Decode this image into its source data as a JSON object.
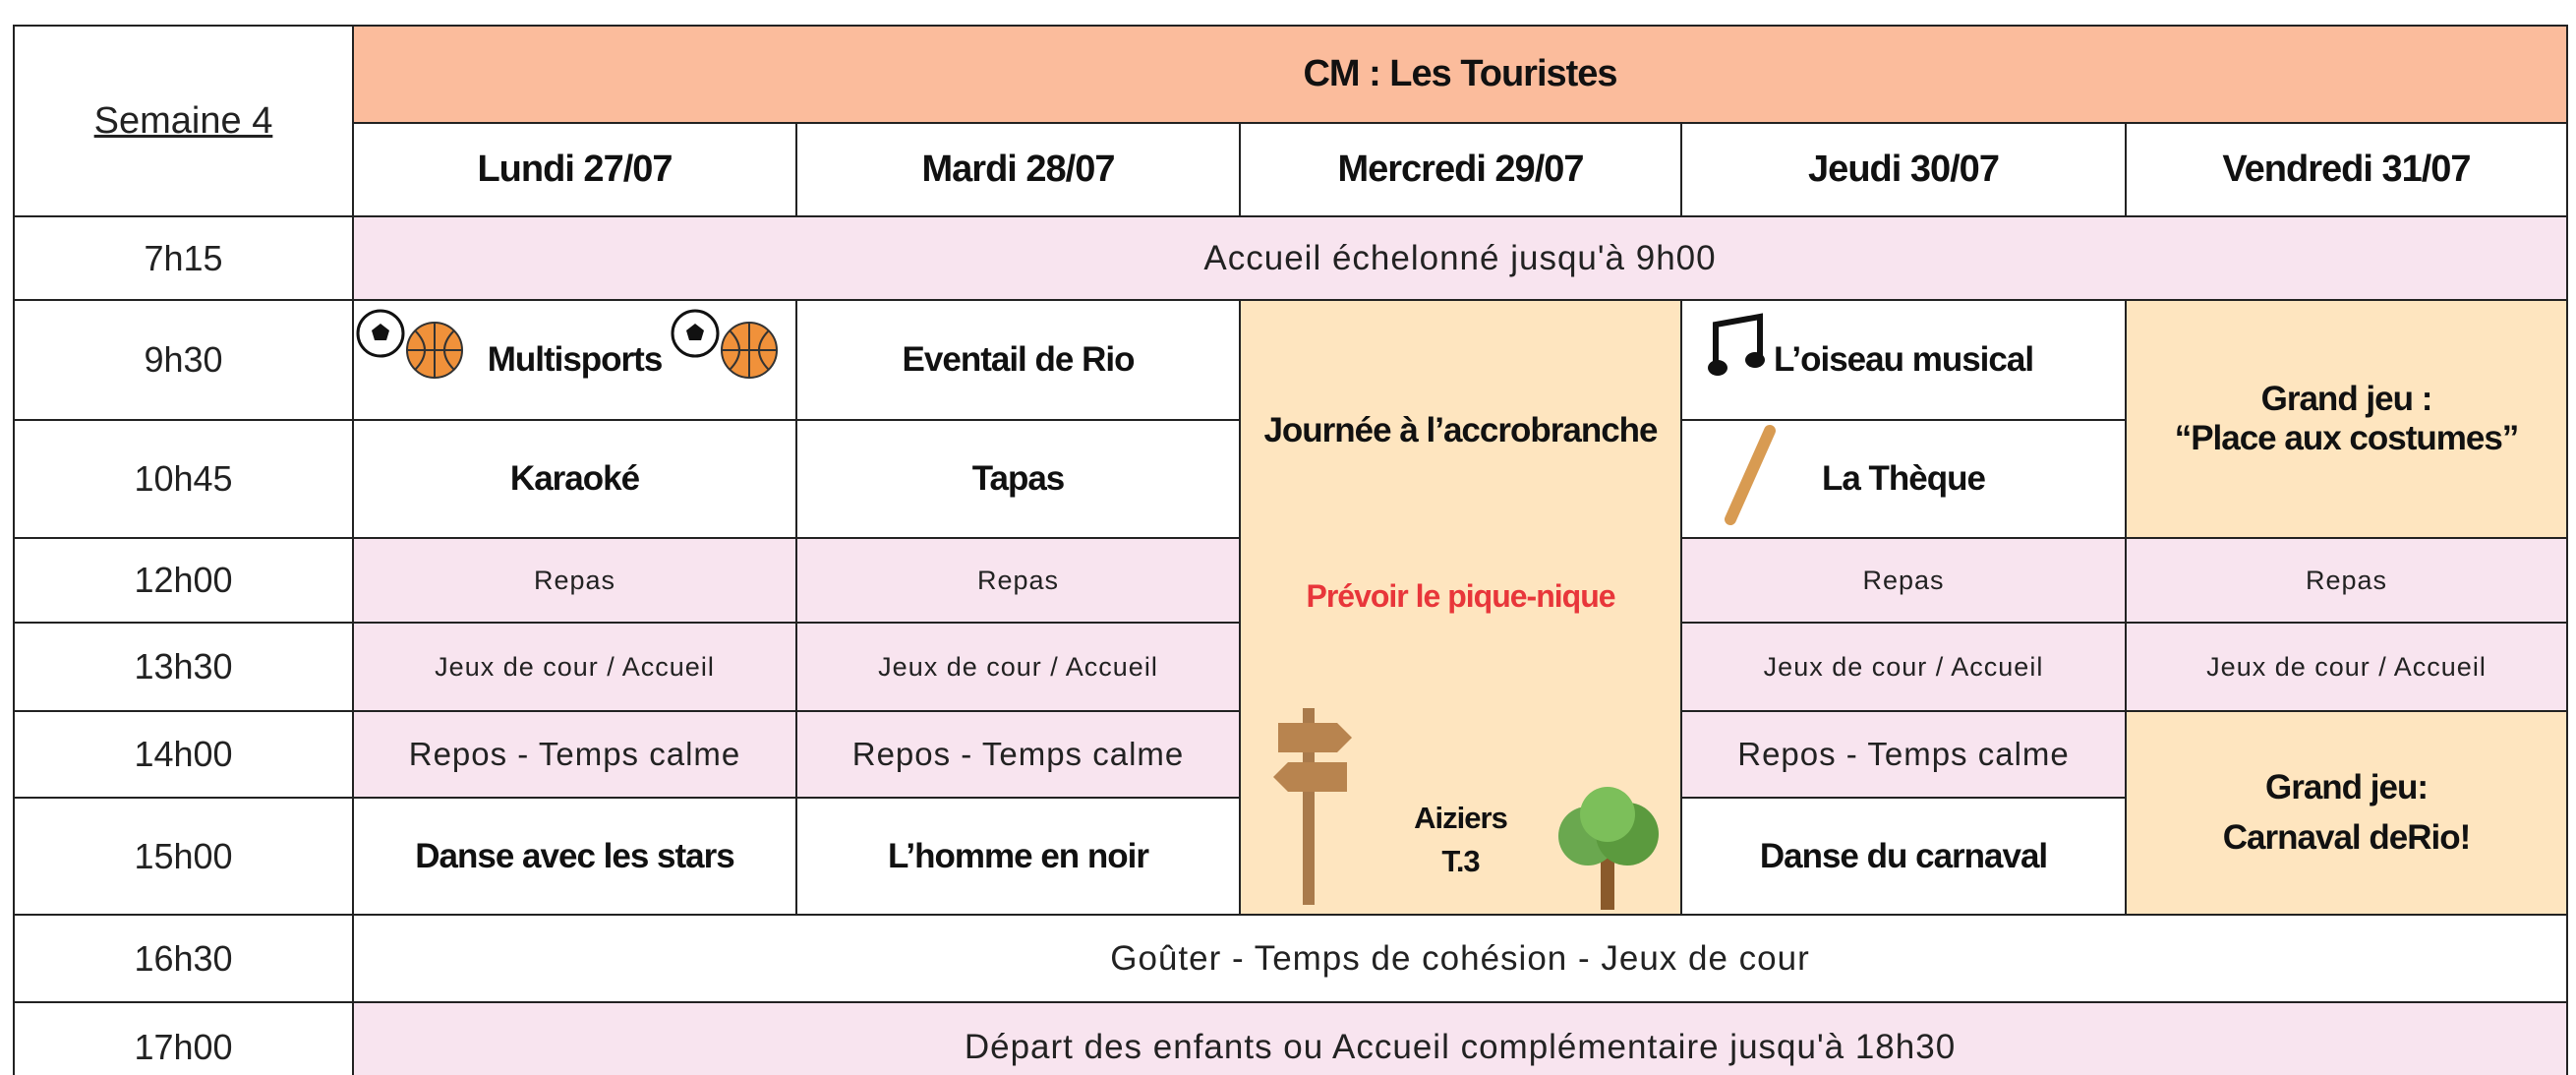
{
  "header": {
    "week": "Semaine 4",
    "title": "CM : Les Touristes",
    "days": [
      "Lundi 27/07",
      "Mardi 28/07",
      "Mercredi 29/07",
      "Jeudi 30/07",
      "Vendredi 31/07"
    ]
  },
  "times": [
    "7h15",
    "9h30",
    "10h45",
    "12h00",
    "13h30",
    "14h00",
    "15h00",
    "16h30",
    "17h00"
  ],
  "common": [
    "Accueil échelonné jusqu'à 9h00",
    "Goûter - Temps de cohésion - Jeux de cour",
    "Départ des enfants ou Accueil complémentaire jusqu'à 18h30"
  ],
  "activities": [
    [
      "Multisports",
      "Karaoké",
      "Repas",
      "Jeux de cour / Accueil",
      "Repos - Temps calme",
      "Danse avec les stars"
    ],
    [
      "Eventail de Rio",
      "Tapas",
      "Repas",
      "Jeux de cour / Accueil",
      "Repos - Temps calme",
      "L’homme en noir"
    ],
    [
      "Journée à l’accrobranche",
      "Prévoir le pique-nique",
      "Aiziers",
      "T.3"
    ],
    [
      "L’oiseau musical",
      "La Thèque",
      "Repas",
      "Jeux de cour / Accueil",
      "Repos - Temps calme",
      "Danse du carnaval"
    ],
    [
      "Grand jeu :",
      "“Place aux costumes”",
      "Repas",
      "Jeux de cour / Accueil",
      "Grand jeu:",
      "Carnaval deRio!"
    ]
  ]
}
